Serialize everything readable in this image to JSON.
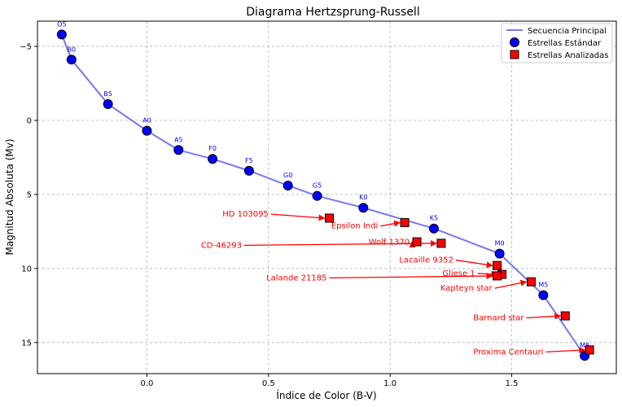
{
  "chart_data": {
    "type": "scatter",
    "title": "Diagrama Hertzsprung-Russell",
    "xlabel": "Índice de Color (B-V)",
    "ylabel": "Magnitud Absoluta (Mv)",
    "xlim": [
      -0.45,
      1.93
    ],
    "ylim": [
      17.1,
      -6.7
    ],
    "y_inverted": true,
    "grid": true,
    "legend_position": "top-right",
    "x_ticks": [
      0.0,
      0.5,
      1.0,
      1.5
    ],
    "x_tick_labels": [
      "0.0",
      "0.5",
      "1.0",
      "1.5"
    ],
    "y_ticks": [
      -5,
      0,
      5,
      10,
      15
    ],
    "y_tick_labels": [
      "−5",
      "0",
      "5",
      "10",
      "15"
    ],
    "line": {
      "name": "Secuencia Principal",
      "color": "#7878f0"
    },
    "standard": {
      "name": "Estrellas Estándar",
      "color": "#0000ff",
      "points": [
        {
          "label": "O5",
          "x": -0.35,
          "y": -5.8
        },
        {
          "label": "B0",
          "x": -0.31,
          "y": -4.1
        },
        {
          "label": "B5",
          "x": -0.16,
          "y": -1.1
        },
        {
          "label": "A0",
          "x": 0.0,
          "y": 0.7
        },
        {
          "label": "A5",
          "x": 0.13,
          "y": 2.0
        },
        {
          "label": "F0",
          "x": 0.27,
          "y": 2.6
        },
        {
          "label": "F5",
          "x": 0.42,
          "y": 3.4
        },
        {
          "label": "G0",
          "x": 0.58,
          "y": 4.4
        },
        {
          "label": "G5",
          "x": 0.7,
          "y": 5.1
        },
        {
          "label": "K0",
          "x": 0.89,
          "y": 5.9
        },
        {
          "label": "K5",
          "x": 1.18,
          "y": 7.3
        },
        {
          "label": "M0",
          "x": 1.45,
          "y": 9.0
        },
        {
          "label": "M5",
          "x": 1.63,
          "y": 11.8
        },
        {
          "label": "M8",
          "x": 1.8,
          "y": 15.9
        }
      ]
    },
    "analyzed": {
      "name": "Estrellas Analizadas",
      "color": "#ff0000",
      "points": [
        {
          "label": "HD 103095",
          "x": 0.75,
          "y": 6.6,
          "tx": 0.5,
          "ty": 6.5
        },
        {
          "label": "Epsilon Indi",
          "x": 1.06,
          "y": 6.9,
          "tx": 0.95,
          "ty": 7.3
        },
        {
          "label": "Wolf 1370",
          "x": 1.11,
          "y": 8.2,
          "tx": 1.08,
          "ty": 8.4
        },
        {
          "label": "CD-46293",
          "x": 1.21,
          "y": 8.3,
          "tx": 0.39,
          "ty": 8.6
        },
        {
          "label": "Lacaille 9352",
          "x": 1.44,
          "y": 9.8,
          "tx": 1.26,
          "ty": 9.6
        },
        {
          "label": "Gliese 1",
          "x": 1.46,
          "y": 10.4,
          "tx": 1.35,
          "ty": 10.5
        },
        {
          "label": "Lalande 21185",
          "x": 1.44,
          "y": 10.5,
          "tx": 0.74,
          "ty": 10.8
        },
        {
          "label": "Kapteyn star",
          "x": 1.58,
          "y": 10.9,
          "tx": 1.42,
          "ty": 11.5
        },
        {
          "label": "Barnard star",
          "x": 1.72,
          "y": 13.2,
          "tx": 1.55,
          "ty": 13.5
        },
        {
          "label": "Proxima Centauri",
          "x": 1.82,
          "y": 15.5,
          "tx": 1.63,
          "ty": 15.8
        }
      ]
    }
  }
}
